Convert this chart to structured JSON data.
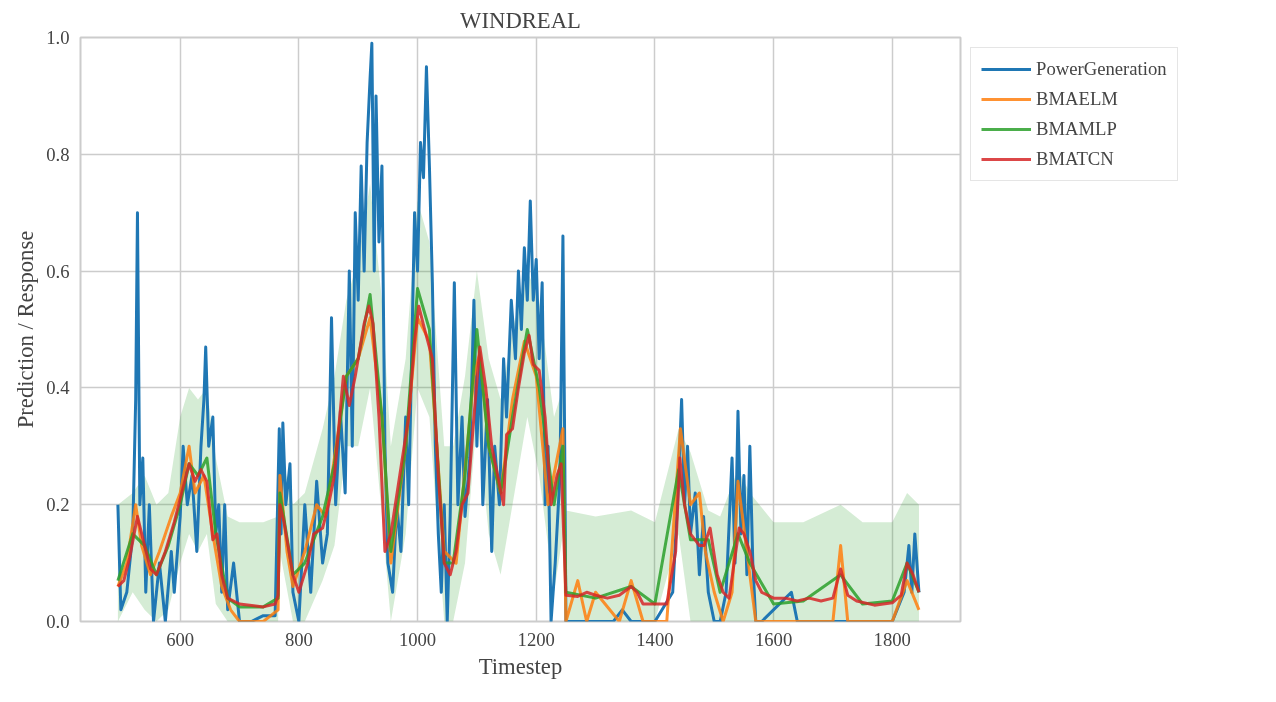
{
  "chart_data": {
    "type": "line",
    "title": "WINDREAL",
    "xlabel": "Timestep",
    "ylabel": "Prediction / Response",
    "xlim": [
      432,
      1915
    ],
    "ylim": [
      0,
      1.0
    ],
    "xticks": [
      600,
      800,
      1000,
      1200,
      1400,
      1600,
      1800
    ],
    "yticks": [
      {
        "value": 0,
        "label": "0.0"
      },
      {
        "value": 0.2,
        "label": "0.2"
      },
      {
        "value": 0.4,
        "label": "0.4"
      },
      {
        "value": 0.6,
        "label": "0.6"
      },
      {
        "value": 0.8,
        "label": "0.8"
      },
      {
        "value": 1.0,
        "label": "1.0"
      }
    ],
    "grid": true,
    "legend": "top right",
    "line_style": "solid",
    "marker": "none",
    "series": [
      {
        "name": "PowerGeneration",
        "color": "#1f77b4",
        "x": [
          495,
          500,
          510,
          520,
          525,
          528,
          532,
          537,
          542,
          548,
          555,
          565,
          575,
          585,
          590,
          600,
          605,
          612,
          620,
          628,
          635,
          640,
          643,
          648,
          655,
          660,
          665,
          670,
          675,
          680,
          690,
          700,
          720,
          740,
          760,
          767,
          770,
          773,
          778,
          785,
          790,
          800,
          810,
          820,
          830,
          840,
          848,
          855,
          862,
          870,
          878,
          885,
          890,
          895,
          900,
          905,
          910,
          915,
          920,
          923,
          927,
          930,
          935,
          940,
          945,
          950,
          958,
          965,
          972,
          980,
          985,
          990,
          995,
          1000,
          1005,
          1010,
          1015,
          1020,
          1025,
          1030,
          1035,
          1040,
          1045,
          1050,
          1055,
          1062,
          1068,
          1075,
          1080,
          1088,
          1095,
          1100,
          1105,
          1110,
          1118,
          1125,
          1130,
          1138,
          1145,
          1150,
          1158,
          1165,
          1170,
          1175,
          1180,
          1185,
          1190,
          1195,
          1200,
          1205,
          1210,
          1215,
          1220,
          1225,
          1232,
          1240,
          1245,
          1248,
          1250,
          1300,
          1330,
          1345,
          1360,
          1400,
          1430,
          1438,
          1445,
          1450,
          1455,
          1460,
          1468,
          1475,
          1482,
          1490,
          1500,
          1510,
          1520,
          1530,
          1535,
          1540,
          1545,
          1550,
          1555,
          1560,
          1565,
          1570,
          1580,
          1630,
          1640,
          1700,
          1800,
          1820,
          1828,
          1833,
          1838,
          1845
        ],
        "values": [
          0.2,
          0.02,
          0.05,
          0.15,
          0.38,
          0.7,
          0.2,
          0.28,
          0.05,
          0.2,
          0.0,
          0.1,
          0.0,
          0.12,
          0.05,
          0.18,
          0.3,
          0.2,
          0.25,
          0.12,
          0.3,
          0.38,
          0.47,
          0.3,
          0.35,
          0.15,
          0.2,
          0.05,
          0.2,
          0.02,
          0.1,
          0.0,
          0.0,
          0.01,
          0.01,
          0.33,
          0.15,
          0.34,
          0.2,
          0.27,
          0.05,
          0.0,
          0.2,
          0.05,
          0.24,
          0.1,
          0.15,
          0.52,
          0.2,
          0.36,
          0.22,
          0.6,
          0.3,
          0.7,
          0.55,
          0.78,
          0.6,
          0.82,
          0.93,
          0.99,
          0.6,
          0.9,
          0.65,
          0.78,
          0.3,
          0.1,
          0.05,
          0.2,
          0.12,
          0.35,
          0.2,
          0.45,
          0.7,
          0.6,
          0.82,
          0.76,
          0.95,
          0.78,
          0.58,
          0.3,
          0.15,
          0.05,
          0.2,
          0.0,
          0.18,
          0.58,
          0.2,
          0.35,
          0.18,
          0.28,
          0.55,
          0.3,
          0.45,
          0.2,
          0.38,
          0.12,
          0.3,
          0.2,
          0.45,
          0.35,
          0.55,
          0.45,
          0.6,
          0.5,
          0.64,
          0.55,
          0.72,
          0.55,
          0.62,
          0.45,
          0.58,
          0.2,
          0.3,
          0.0,
          0.1,
          0.25,
          0.66,
          0.3,
          0.0,
          0.0,
          0.0,
          0.02,
          0.0,
          0.0,
          0.05,
          0.2,
          0.38,
          0.2,
          0.3,
          0.15,
          0.22,
          0.08,
          0.18,
          0.05,
          0.0,
          0.0,
          0.05,
          0.28,
          0.1,
          0.36,
          0.15,
          0.25,
          0.08,
          0.3,
          0.1,
          0.0,
          0.0,
          0.05,
          0.0,
          0.0,
          0.0,
          0.05,
          0.13,
          0.05,
          0.15,
          0.05
        ]
      },
      {
        "name": "BMAELM",
        "color": "#ff7f0e",
        "x": [
          495,
          510,
          525,
          535,
          550,
          565,
          585,
          600,
          615,
          625,
          640,
          655,
          670,
          685,
          700,
          740,
          765,
          768,
          780,
          790,
          810,
          830,
          845,
          860,
          880,
          900,
          920,
          940,
          955,
          980,
          1000,
          1020,
          1045,
          1065,
          1080,
          1095,
          1105,
          1120,
          1140,
          1160,
          1180,
          1200,
          1220,
          1245,
          1250,
          1270,
          1285,
          1300,
          1340,
          1360,
          1380,
          1420,
          1443,
          1460,
          1475,
          1485,
          1500,
          1515,
          1530,
          1540,
          1555,
          1570,
          1600,
          1700,
          1713,
          1725,
          1800,
          1825,
          1845
        ],
        "values": [
          0.06,
          0.1,
          0.2,
          0.13,
          0.08,
          0.12,
          0.18,
          0.22,
          0.3,
          0.22,
          0.25,
          0.15,
          0.06,
          0.02,
          0.0,
          0.0,
          0.02,
          0.25,
          0.12,
          0.06,
          0.12,
          0.2,
          0.18,
          0.28,
          0.42,
          0.45,
          0.52,
          0.35,
          0.1,
          0.3,
          0.52,
          0.48,
          0.12,
          0.1,
          0.26,
          0.42,
          0.46,
          0.3,
          0.22,
          0.38,
          0.48,
          0.42,
          0.2,
          0.33,
          0.0,
          0.07,
          0.0,
          0.05,
          0.0,
          0.07,
          0.0,
          0.0,
          0.33,
          0.2,
          0.22,
          0.12,
          0.05,
          0.0,
          0.05,
          0.24,
          0.12,
          0.0,
          0.0,
          0.0,
          0.13,
          0.0,
          0.0,
          0.07,
          0.02
        ]
      },
      {
        "name": "BMAMLP",
        "color": "#2ca02c",
        "x": [
          495,
          520,
          540,
          560,
          580,
          600,
          615,
          630,
          645,
          660,
          680,
          700,
          740,
          765,
          768,
          790,
          810,
          840,
          860,
          880,
          900,
          920,
          940,
          955,
          980,
          1000,
          1020,
          1045,
          1060,
          1080,
          1100,
          1120,
          1140,
          1160,
          1185,
          1205,
          1230,
          1245,
          1250,
          1300,
          1360,
          1400,
          1440,
          1460,
          1490,
          1510,
          1540,
          1560,
          1600,
          1650,
          1713,
          1750,
          1800,
          1825,
          1845
        ],
        "values": [
          0.07,
          0.15,
          0.13,
          0.08,
          0.13,
          0.2,
          0.27,
          0.25,
          0.28,
          0.15,
          0.04,
          0.025,
          0.025,
          0.04,
          0.22,
          0.08,
          0.1,
          0.18,
          0.27,
          0.42,
          0.45,
          0.56,
          0.35,
          0.12,
          0.3,
          0.57,
          0.5,
          0.1,
          0.1,
          0.25,
          0.5,
          0.3,
          0.22,
          0.35,
          0.5,
          0.4,
          0.2,
          0.3,
          0.05,
          0.04,
          0.06,
          0.03,
          0.26,
          0.14,
          0.14,
          0.05,
          0.15,
          0.1,
          0.03,
          0.035,
          0.08,
          0.03,
          0.035,
          0.1,
          0.05
        ],
        "upper": [
          0.2,
          0.22,
          0.25,
          0.2,
          0.22,
          0.35,
          0.4,
          0.38,
          0.4,
          0.28,
          0.18,
          0.17,
          0.17,
          0.18,
          0.3,
          0.2,
          0.22,
          0.33,
          0.42,
          0.55,
          0.62,
          0.75,
          0.55,
          0.3,
          0.45,
          0.72,
          0.65,
          0.3,
          0.3,
          0.42,
          0.6,
          0.45,
          0.38,
          0.5,
          0.6,
          0.55,
          0.35,
          0.4,
          0.19,
          0.18,
          0.19,
          0.17,
          0.33,
          0.29,
          0.19,
          0.18,
          0.26,
          0.22,
          0.17,
          0.17,
          0.2,
          0.17,
          0.17,
          0.22,
          0.2
        ],
        "lower": [
          0,
          0.05,
          0.02,
          0,
          0.02,
          0.1,
          0.15,
          0.12,
          0.15,
          0.03,
          0,
          0,
          0,
          0,
          0.12,
          0,
          0,
          0.07,
          0.13,
          0.3,
          0.3,
          0.4,
          0.18,
          0,
          0.15,
          0.4,
          0.35,
          0,
          0,
          0.1,
          0.35,
          0.15,
          0.08,
          0.2,
          0.35,
          0.25,
          0.05,
          0.15,
          0,
          0,
          0,
          0,
          0.15,
          0,
          0,
          0,
          0,
          0,
          0,
          0,
          0,
          0,
          0,
          0,
          0
        ]
      },
      {
        "name": "BMATCN",
        "color": "#d62728",
        "x": [
          495,
          505,
          515,
          528,
          540,
          550,
          560,
          575,
          590,
          600,
          615,
          625,
          635,
          645,
          655,
          662,
          670,
          680,
          700,
          740,
          760,
          765,
          768,
          775,
          790,
          800,
          815,
          825,
          840,
          850,
          860,
          875,
          885,
          895,
          910,
          918,
          925,
          935,
          945,
          955,
          970,
          985,
          995,
          1002,
          1012,
          1025,
          1035,
          1045,
          1055,
          1065,
          1075,
          1085,
          1095,
          1105,
          1115,
          1125,
          1135,
          1145,
          1150,
          1160,
          1170,
          1180,
          1188,
          1195,
          1205,
          1215,
          1225,
          1235,
          1242,
          1250,
          1270,
          1285,
          1300,
          1320,
          1340,
          1360,
          1370,
          1380,
          1400,
          1420,
          1435,
          1442,
          1450,
          1460,
          1475,
          1483,
          1493,
          1505,
          1515,
          1525,
          1535,
          1542,
          1550,
          1560,
          1570,
          1580,
          1600,
          1620,
          1640,
          1660,
          1680,
          1700,
          1713,
          1725,
          1740,
          1770,
          1800,
          1815,
          1825,
          1835,
          1845
        ],
        "values": [
          0.06,
          0.07,
          0.11,
          0.18,
          0.13,
          0.09,
          0.08,
          0.12,
          0.17,
          0.21,
          0.27,
          0.24,
          0.26,
          0.24,
          0.14,
          0.15,
          0.08,
          0.04,
          0.03,
          0.025,
          0.03,
          0.045,
          0.2,
          0.17,
          0.08,
          0.05,
          0.1,
          0.15,
          0.16,
          0.2,
          0.25,
          0.42,
          0.37,
          0.42,
          0.51,
          0.54,
          0.51,
          0.35,
          0.12,
          0.15,
          0.25,
          0.35,
          0.48,
          0.54,
          0.5,
          0.45,
          0.25,
          0.1,
          0.08,
          0.12,
          0.2,
          0.22,
          0.35,
          0.47,
          0.4,
          0.3,
          0.25,
          0.2,
          0.32,
          0.33,
          0.4,
          0.46,
          0.49,
          0.44,
          0.43,
          0.35,
          0.2,
          0.25,
          0.27,
          0.045,
          0.043,
          0.05,
          0.045,
          0.04,
          0.045,
          0.06,
          0.05,
          0.03,
          0.03,
          0.03,
          0.12,
          0.28,
          0.2,
          0.15,
          0.13,
          0.13,
          0.16,
          0.08,
          0.05,
          0.04,
          0.11,
          0.16,
          0.15,
          0.12,
          0.07,
          0.05,
          0.04,
          0.04,
          0.035,
          0.04,
          0.035,
          0.04,
          0.09,
          0.045,
          0.035,
          0.028,
          0.032,
          0.045,
          0.1,
          0.08,
          0.05
        ]
      }
    ]
  }
}
